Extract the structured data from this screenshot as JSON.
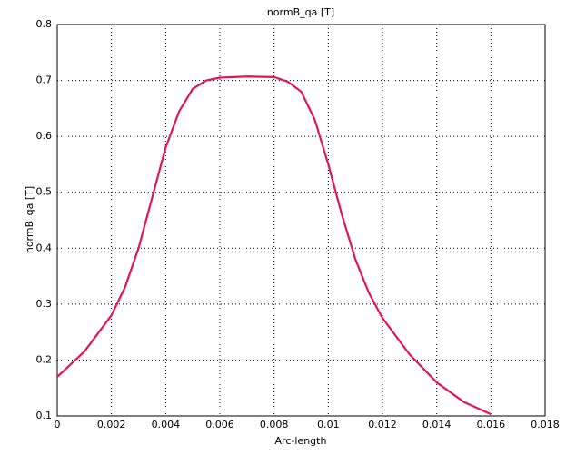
{
  "chart_data": {
    "type": "line",
    "title": "normB_qa [T]",
    "x_label": "Arc-length",
    "y_label": "normB_qa [T]",
    "x": [
      0,
      0.001,
      0.002,
      0.0025,
      0.003,
      0.0035,
      0.004,
      0.0045,
      0.005,
      0.0055,
      0.006,
      0.007,
      0.008,
      0.0085,
      0.009,
      0.0095,
      0.01,
      0.0105,
      0.011,
      0.0115,
      0.012,
      0.013,
      0.014,
      0.015,
      0.016
    ],
    "series": [
      {
        "name": "normB_qa",
        "color": "#e3145e",
        "values": [
          0.17,
          0.215,
          0.28,
          0.33,
          0.4,
          0.49,
          0.58,
          0.645,
          0.685,
          0.7,
          0.705,
          0.707,
          0.706,
          0.698,
          0.68,
          0.63,
          0.55,
          0.46,
          0.38,
          0.32,
          0.275,
          0.21,
          0.16,
          0.125,
          0.103
        ]
      }
    ],
    "xlim": [
      0,
      0.018
    ],
    "xticks": [
      0,
      0.002,
      0.004,
      0.006,
      0.008,
      0.01,
      0.012,
      0.014,
      0.016,
      0.018
    ],
    "ylim": [
      0.1,
      0.8
    ],
    "yticks": [
      0.1,
      0.2,
      0.3,
      0.4,
      0.5,
      0.6,
      0.7,
      0.8
    ],
    "grid": true
  }
}
